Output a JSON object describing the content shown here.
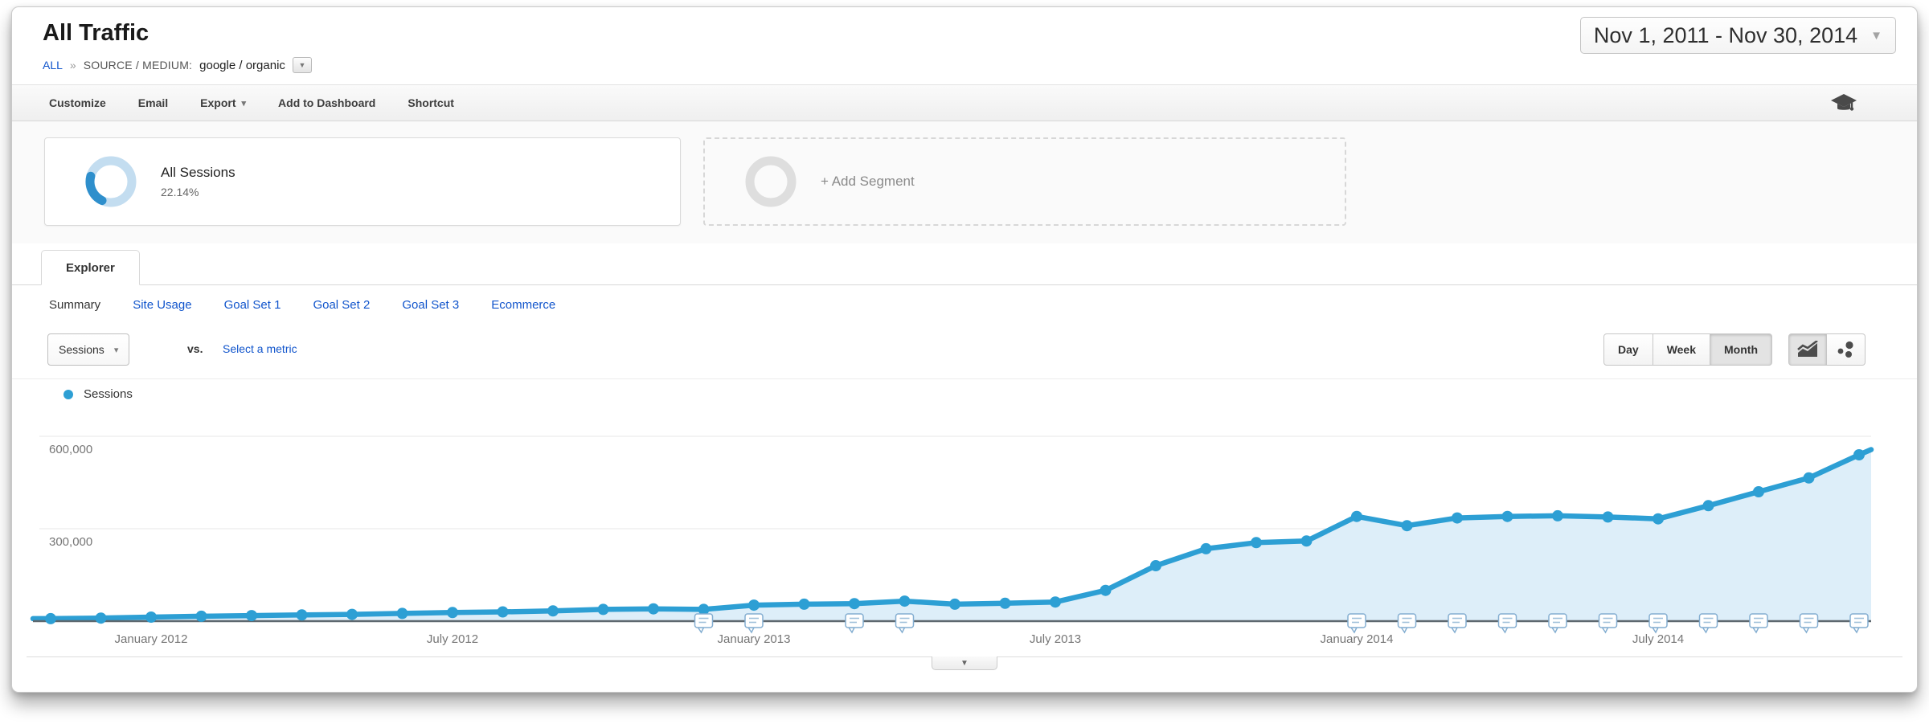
{
  "icons": {
    "caret_down": "▾",
    "dropdown_arrow": "▼"
  },
  "header": {
    "title": "All Traffic",
    "breadcrumb": {
      "root": "ALL",
      "separator": "»",
      "dimension": "SOURCE / MEDIUM:",
      "value": "google / organic"
    },
    "date_range": "Nov 1, 2011 - Nov 30, 2014"
  },
  "toolbar": {
    "items": [
      {
        "label": "Customize"
      },
      {
        "label": "Email"
      },
      {
        "label": "Export"
      },
      {
        "label": "Add to Dashboard"
      },
      {
        "label": "Shortcut"
      }
    ]
  },
  "segments": {
    "all_sessions": {
      "label": "All Sessions",
      "value": "22.14%",
      "percent": 22.14,
      "ring_color": "#c3ddf0",
      "arc_color": "#2e8fcc"
    },
    "add_segment": {
      "label": "+ Add Segment",
      "ring_color": "#dedede"
    }
  },
  "explorer": {
    "tab_label": "Explorer",
    "subnav": [
      {
        "label": "Summary",
        "active": true
      },
      {
        "label": "Site Usage",
        "active": false
      },
      {
        "label": "Goal Set 1",
        "active": false
      },
      {
        "label": "Goal Set 2",
        "active": false
      },
      {
        "label": "Goal Set 3",
        "active": false
      },
      {
        "label": "Ecommerce",
        "active": false
      }
    ]
  },
  "controls": {
    "metric_selector": "Sessions",
    "vs_label": "vs.",
    "compare_link": "Select a metric",
    "granularity": [
      {
        "label": "Day",
        "active": false
      },
      {
        "label": "Week",
        "active": false
      },
      {
        "label": "Month",
        "active": true
      }
    ]
  },
  "chart_data": {
    "type": "line",
    "title": "Sessions over time (monthly)",
    "legend": {
      "label": "Sessions",
      "color": "#2d9fd4"
    },
    "categories": [
      "Nov 2011",
      "Dec 2011",
      "Jan 2012",
      "Feb 2012",
      "Mar 2012",
      "Apr 2012",
      "May 2012",
      "Jun 2012",
      "Jul 2012",
      "Aug 2012",
      "Sep 2012",
      "Oct 2012",
      "Nov 2012",
      "Dec 2012",
      "Jan 2013",
      "Feb 2013",
      "Mar 2013",
      "Apr 2013",
      "May 2013",
      "Jun 2013",
      "Jul 2013",
      "Aug 2013",
      "Sep 2013",
      "Oct 2013",
      "Nov 2013",
      "Dec 2013",
      "Jan 2014",
      "Feb 2014",
      "Mar 2014",
      "Apr 2014",
      "May 2014",
      "Jun 2014",
      "Jul 2014",
      "Aug 2014",
      "Sep 2014",
      "Oct 2014",
      "Nov 2014"
    ],
    "values": [
      8000,
      10000,
      13000,
      16000,
      18000,
      20000,
      22000,
      25000,
      28000,
      30000,
      33000,
      38000,
      40000,
      38000,
      52000,
      55000,
      57000,
      65000,
      55000,
      58000,
      62000,
      100000,
      180000,
      235000,
      255000,
      260000,
      340000,
      310000,
      335000,
      340000,
      342000,
      338000,
      332000,
      375000,
      420000,
      465000,
      540000
    ],
    "trailing_edge_value": 557000,
    "ylim": [
      0,
      600000
    ],
    "yticks": [
      {
        "value": 300000,
        "label": "300,000"
      },
      {
        "value": 600000,
        "label": "600,000"
      }
    ],
    "xticks": [
      "Jan 2012",
      "Jul 2012",
      "Jan 2013",
      "Jul 2013",
      "Jan 2014",
      "Jul 2014"
    ],
    "xtick_labels": {
      "Jan 2012": "January 2012",
      "Jul 2012": "July 2012",
      "Jan 2013": "January 2013",
      "Jul 2013": "July 2013",
      "Jan 2014": "January 2014",
      "Jul 2014": "July 2014"
    },
    "annotation_flag_months": [
      "Dec 2012",
      "Jan 2013",
      "Mar 2013",
      "Apr 2013",
      "Jan 2014",
      "Feb 2014",
      "Mar 2014",
      "Apr 2014",
      "May 2014",
      "Jun 2014",
      "Jul 2014",
      "Aug 2014",
      "Sep 2014",
      "Oct 2014",
      "Nov 2014"
    ],
    "grid": true,
    "legend_position": "top-left",
    "line_color": "#2d9fd4",
    "area_fill": "#ddeef9",
    "axis_color": "#5e686f",
    "grid_color": "#e7e7e7",
    "tick_text_color": "#757575"
  }
}
